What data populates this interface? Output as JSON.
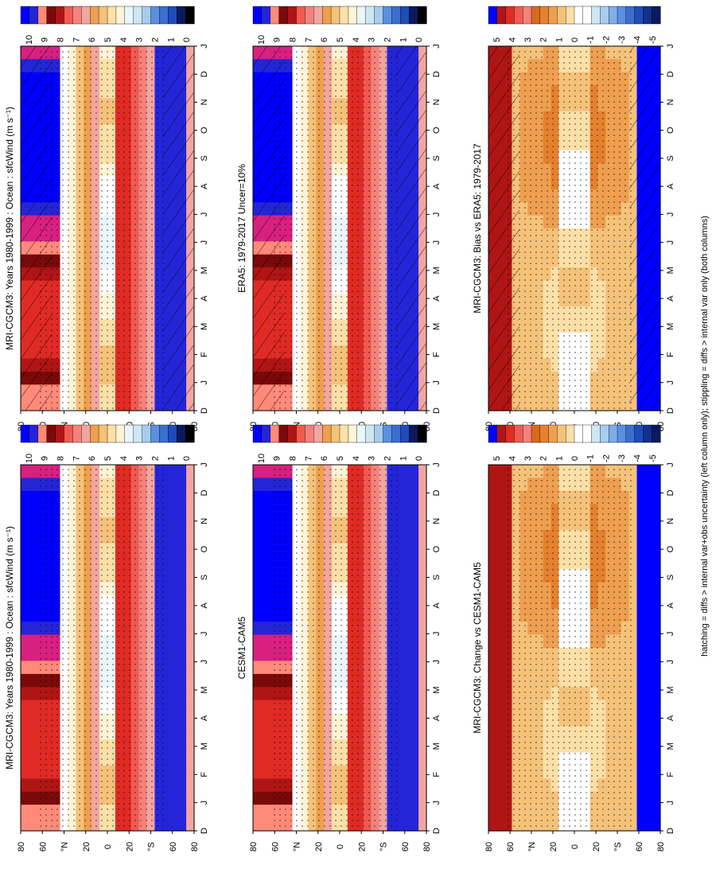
{
  "footnote": "hatching = diffs > internal var+obs uncertainty (left column only); stippling = diffs > internal var only (both columns)",
  "palettes": {
    "wind": [
      "#000000",
      "#0b1a5e",
      "#13308c",
      "#1f4cb8",
      "#3a6fd0",
      "#5b8fe0",
      "#7faee8",
      "#a6cdee",
      "#cfe7f5",
      "#eaf6fb",
      "#ffffff",
      "#fff3d6",
      "#fbe0a8",
      "#f5c27a",
      "#ee9f50",
      "#e5812e",
      "#f2a6a0",
      "#f4827a",
      "#f05a50",
      "#e02b25",
      "#b01515",
      "#7a0a0a",
      "#ff8a7a",
      "#d82080",
      "#2525d8",
      "#0000ff"
    ],
    "diff": [
      "#000000",
      "#0b1a5e",
      "#13308c",
      "#1f4cb8",
      "#3a6fd0",
      "#5b8fe0",
      "#7faee8",
      "#a6cdee",
      "#cfe7f5",
      "#ffffff",
      "#ffffff",
      "#fbe0a8",
      "#f5c27a",
      "#ee9f50",
      "#e5812e",
      "#d86a1e",
      "#f4827a",
      "#f05a50",
      "#e02b25",
      "#b01515",
      "#0000ff"
    ]
  },
  "chart_data": [
    {
      "type": "heatmap",
      "panel": "left-top",
      "title": "MRI-CGCM3: Years 1980-1999 : Ocean : sfcWind (m s⁻¹)",
      "x_tick_labels": [
        "D",
        "J",
        "F",
        "M",
        "A",
        "M",
        "J",
        "J",
        "A",
        "S",
        "O",
        "N",
        "D",
        "J"
      ],
      "y_tick_labels": [
        "80",
        "60",
        "°N",
        "20",
        "0",
        "20",
        "°S",
        "60",
        "80"
      ],
      "y_values": [
        80,
        60,
        40,
        20,
        0,
        -20,
        -40,
        -60,
        -80
      ],
      "colorbar_labels": [
        "10",
        "9",
        "8",
        "7",
        "6",
        "5",
        "4",
        "3",
        "2",
        "1",
        "0"
      ],
      "colorbar_range": [
        0,
        10
      ],
      "palette": "wind",
      "hatching": true,
      "stippling": true
    },
    {
      "type": "heatmap",
      "panel": "left-middle",
      "title": "ERA5: 1979-2017 Uncer=10%",
      "x_tick_labels": [
        "D",
        "J",
        "F",
        "M",
        "A",
        "M",
        "J",
        "J",
        "A",
        "S",
        "O",
        "N",
        "D",
        "J"
      ],
      "y_tick_labels": [
        "80",
        "60",
        "°N",
        "20",
        "0",
        "20",
        "°S",
        "60",
        "80"
      ],
      "y_values": [
        80,
        60,
        40,
        20,
        0,
        -20,
        -40,
        -60,
        -80
      ],
      "colorbar_labels": [
        "10",
        "9",
        "8",
        "7",
        "6",
        "5",
        "4",
        "3",
        "2",
        "1",
        "0"
      ],
      "colorbar_range": [
        0,
        10
      ],
      "palette": "wind",
      "hatching": true,
      "stippling": true
    },
    {
      "type": "heatmap",
      "panel": "left-bottom",
      "title": "MRI-CGCM3: Bias vs ERA5: 1979-2017",
      "x_tick_labels": [
        "D",
        "J",
        "F",
        "M",
        "A",
        "M",
        "J",
        "J",
        "A",
        "S",
        "O",
        "N",
        "D",
        "J"
      ],
      "y_tick_labels": [
        "80",
        "60",
        "°N",
        "20",
        "0",
        "20",
        "°S",
        "60",
        "80"
      ],
      "y_values": [
        80,
        60,
        40,
        20,
        0,
        -20,
        -40,
        -60,
        -80
      ],
      "colorbar_labels": [
        "5",
        "4",
        "3",
        "2",
        "1",
        "0",
        "-1",
        "-2",
        "-3",
        "-4",
        "-5"
      ],
      "colorbar_range": [
        -5,
        5
      ],
      "palette": "diff",
      "hatching": true,
      "stippling": true
    },
    {
      "type": "heatmap",
      "panel": "right-top",
      "title": "MRI-CGCM3: Years 1980-1999 : Ocean : sfcWind (m s⁻¹)",
      "x_tick_labels": [
        "D",
        "J",
        "F",
        "M",
        "A",
        "M",
        "J",
        "J",
        "A",
        "S",
        "O",
        "N",
        "D",
        "J"
      ],
      "y_tick_labels": [
        "80",
        "60",
        "°N",
        "20",
        "0",
        "20",
        "°S",
        "60",
        "80"
      ],
      "y_values": [
        80,
        60,
        40,
        20,
        0,
        -20,
        -40,
        -60,
        -80
      ],
      "colorbar_labels": [
        "10",
        "9",
        "8",
        "7",
        "6",
        "5",
        "4",
        "3",
        "2",
        "1",
        "0"
      ],
      "colorbar_range": [
        0,
        10
      ],
      "palette": "wind",
      "hatching": false,
      "stippling": true
    },
    {
      "type": "heatmap",
      "panel": "right-middle",
      "title": "CESM1-CAM5",
      "x_tick_labels": [
        "D",
        "J",
        "F",
        "M",
        "A",
        "M",
        "J",
        "J",
        "A",
        "S",
        "O",
        "N",
        "D",
        "J"
      ],
      "y_tick_labels": [
        "80",
        "60",
        "°N",
        "20",
        "0",
        "20",
        "°S",
        "60",
        "80"
      ],
      "y_values": [
        80,
        60,
        40,
        20,
        0,
        -20,
        -40,
        -60,
        -80
      ],
      "colorbar_labels": [
        "10",
        "9",
        "8",
        "7",
        "6",
        "5",
        "4",
        "3",
        "2",
        "1",
        "0"
      ],
      "colorbar_range": [
        0,
        10
      ],
      "palette": "wind",
      "hatching": false,
      "stippling": true
    },
    {
      "type": "heatmap",
      "panel": "right-bottom",
      "title": "MRI-CGCM3: Change vs CESM1-CAM5",
      "x_tick_labels": [
        "D",
        "J",
        "F",
        "M",
        "A",
        "M",
        "J",
        "J",
        "A",
        "S",
        "O",
        "N",
        "D",
        "J"
      ],
      "y_tick_labels": [
        "80",
        "60",
        "°N",
        "20",
        "0",
        "20",
        "°S",
        "60",
        "80"
      ],
      "y_values": [
        80,
        60,
        40,
        20,
        0,
        -20,
        -40,
        -60,
        -80
      ],
      "colorbar_labels": [
        "5",
        "4",
        "3",
        "2",
        "1",
        "0",
        "-1",
        "-2",
        "-3",
        "-4",
        "-5"
      ],
      "colorbar_range": [
        -5,
        5
      ],
      "palette": "diff",
      "hatching": false,
      "stippling": true
    }
  ]
}
